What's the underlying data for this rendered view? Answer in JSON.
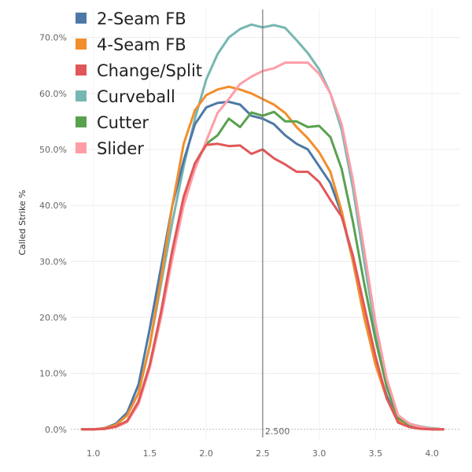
{
  "chart_data": {
    "type": "line",
    "title": "",
    "xlabel": "",
    "ylabel": "Called Strike %",
    "xlim": [
      0.8,
      4.25
    ],
    "ylim": [
      -0.02,
      0.75
    ],
    "x_ticks": [
      1.0,
      1.5,
      2.0,
      2.5,
      3.0,
      3.5,
      4.0
    ],
    "x_tick_labels": [
      "1.0",
      "1.5",
      "2.0",
      "2.5",
      "3.0",
      "3.5",
      "4.0"
    ],
    "y_ticks": [
      0.0,
      0.1,
      0.2,
      0.3,
      0.4,
      0.5,
      0.6,
      0.7
    ],
    "y_tick_labels": [
      "0.0%",
      "10.0%",
      "20.0%",
      "30.0%",
      "40.0%",
      "50.0%",
      "60.0%",
      "70.0%"
    ],
    "grid": true,
    "legend_position": "top-left",
    "reference_line": {
      "x": 2.5,
      "label": "2.500"
    },
    "x": [
      0.9,
      1.0,
      1.1,
      1.2,
      1.3,
      1.4,
      1.5,
      1.6,
      1.7,
      1.8,
      1.9,
      2.0,
      2.1,
      2.2,
      2.3,
      2.4,
      2.5,
      2.6,
      2.7,
      2.8,
      2.9,
      3.0,
      3.1,
      3.2,
      3.3,
      3.4,
      3.5,
      3.6,
      3.7,
      3.8,
      3.9,
      4.0,
      4.1
    ],
    "series": [
      {
        "name": "2-Seam FB",
        "color": "#4e79a7",
        "values": [
          0.0,
          0.0,
          0.002,
          0.01,
          0.03,
          0.08,
          0.18,
          0.29,
          0.4,
          0.48,
          0.545,
          0.575,
          0.583,
          0.585,
          0.58,
          0.56,
          0.555,
          0.545,
          0.525,
          0.51,
          0.5,
          0.47,
          0.44,
          0.385,
          0.3,
          0.2,
          0.12,
          0.06,
          0.015,
          0.005,
          0.002,
          0.0,
          0.0
        ]
      },
      {
        "name": "4-Seam FB",
        "color": "#f28e2b",
        "values": [
          0.0,
          0.0,
          0.002,
          0.008,
          0.025,
          0.065,
          0.15,
          0.27,
          0.4,
          0.51,
          0.57,
          0.597,
          0.607,
          0.612,
          0.607,
          0.6,
          0.59,
          0.58,
          0.565,
          0.54,
          0.52,
          0.495,
          0.46,
          0.39,
          0.3,
          0.2,
          0.115,
          0.055,
          0.015,
          0.005,
          0.002,
          0.0,
          0.0
        ]
      },
      {
        "name": "Change/Split",
        "color": "#e15759",
        "values": [
          0.0,
          0.0,
          0.001,
          0.005,
          0.015,
          0.05,
          0.115,
          0.21,
          0.32,
          0.415,
          0.475,
          0.508,
          0.51,
          0.506,
          0.507,
          0.492,
          0.5,
          0.484,
          0.473,
          0.46,
          0.46,
          0.442,
          0.41,
          0.38,
          0.31,
          0.22,
          0.13,
          0.055,
          0.012,
          0.004,
          0.001,
          0.0,
          0.0
        ]
      },
      {
        "name": "Curveball",
        "color": "#76b7b2",
        "values": [
          0.0,
          0.0,
          0.002,
          0.008,
          0.025,
          0.065,
          0.15,
          0.26,
          0.37,
          0.47,
          0.555,
          0.625,
          0.67,
          0.7,
          0.715,
          0.723,
          0.718,
          0.722,
          0.717,
          0.695,
          0.672,
          0.643,
          0.6,
          0.535,
          0.43,
          0.3,
          0.175,
          0.08,
          0.025,
          0.01,
          0.005,
          0.002,
          0.0
        ]
      },
      {
        "name": "Cutter",
        "color": "#59a14f",
        "values": [
          0.0,
          0.0,
          0.001,
          0.005,
          0.015,
          0.05,
          0.115,
          0.21,
          0.32,
          0.415,
          0.475,
          0.51,
          0.525,
          0.555,
          0.54,
          0.566,
          0.56,
          0.567,
          0.55,
          0.55,
          0.54,
          0.542,
          0.522,
          0.465,
          0.37,
          0.26,
          0.16,
          0.075,
          0.02,
          0.008,
          0.003,
          0.001,
          0.0
        ]
      },
      {
        "name": "Slider",
        "color": "#ff9da7",
        "values": [
          0.0,
          0.0,
          0.001,
          0.004,
          0.013,
          0.045,
          0.11,
          0.2,
          0.305,
          0.4,
          0.465,
          0.515,
          0.565,
          0.59,
          0.617,
          0.63,
          0.64,
          0.645,
          0.655,
          0.655,
          0.655,
          0.635,
          0.6,
          0.545,
          0.445,
          0.32,
          0.19,
          0.09,
          0.025,
          0.01,
          0.004,
          0.001,
          0.0
        ]
      }
    ]
  }
}
